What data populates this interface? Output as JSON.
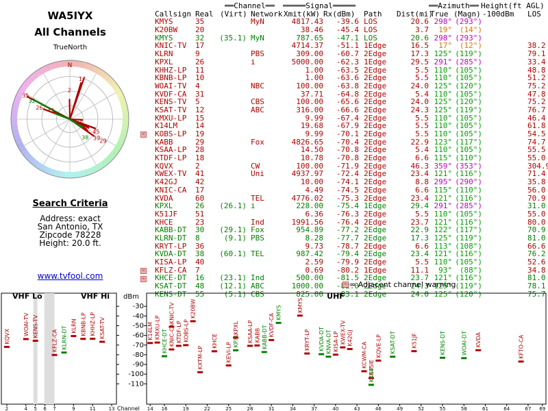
{
  "left": {
    "callsign": "WA5IYX",
    "subtitle": "All Channels",
    "true_north_label": "TrueNorth",
    "north_letter": "N",
    "criteria_title": "Search Criteria",
    "criteria": [
      "Address: exact",
      "San Antonio, TX",
      "Zipcode 78228",
      "Height: 20.0 ft."
    ],
    "website": "www.tvfool.com"
  },
  "polar_labels": [
    {
      "text": "17",
      "color": "#b00000",
      "az": 17,
      "r": 0.8
    },
    {
      "text": "2",
      "color": "#b00000",
      "az": 359,
      "r": 0.55
    },
    {
      "text": "35",
      "color": "#b00000",
      "az": 298,
      "r": 0.95
    },
    {
      "text": "32",
      "color": "#008000",
      "az": 296,
      "r": 0.8
    },
    {
      "text": "26",
      "color": "#b00000",
      "az": 291,
      "r": 0.62
    },
    {
      "text": "42",
      "color": "#b00000",
      "az": 295,
      "r": 0.4
    },
    {
      "text": "45",
      "color": "#b00000",
      "az": 110,
      "r": 0.2
    },
    {
      "text": "45",
      "color": "#b00000",
      "az": 115,
      "r": 0.55
    },
    {
      "text": "39",
      "color": "#b00000",
      "az": 125,
      "r": 0.62
    },
    {
      "text": "38",
      "color": "#008000",
      "az": 140,
      "r": 0.45
    },
    {
      "text": "29",
      "color": "#b00000",
      "az": 123,
      "r": 0.75
    }
  ],
  "header": {
    "g1": "Channel",
    "g2": "Signal",
    "g3": "Azimuth",
    "g4": "Height(ft AGL)",
    "cols": [
      "Callsign",
      "Real",
      "(Virt)",
      "Network",
      "Xmit(kW)",
      "Rx(dBm)",
      "Path",
      "Dist(mi)",
      "True",
      "(Magn)",
      "-100dBm",
      "LOS"
    ]
  },
  "rows": [
    {
      "cs": "KMYS",
      "real": "35",
      "virt": "",
      "net": "MyN",
      "xmit": "4817.43",
      "rx": "-39.6",
      "path": "LOS",
      "dist": "20.6",
      "true": "298°",
      "magn": "(293°)",
      "h100": "",
      "los": "",
      "c": "r",
      "az": "m",
      "w": false
    },
    {
      "cs": "K20BW",
      "real": "20",
      "virt": "",
      "net": "",
      "xmit": "38.46",
      "rx": "-45.4",
      "path": "LOS",
      "dist": "3.7",
      "true": "19°",
      "magn": "(14°)",
      "h100": "",
      "los": "",
      "c": "r",
      "az": "o",
      "w": false
    },
    {
      "cs": "KMYS",
      "real": "32",
      "virt": "(35.1)",
      "net": "MyN",
      "xmit": "787.65",
      "rx": "-47.1",
      "path": "LOS",
      "dist": "20.6",
      "true": "298°",
      "magn": "(293°)",
      "h100": "",
      "los": "",
      "c": "g",
      "az": "m",
      "w": false
    },
    {
      "cs": "KNIC-TV",
      "real": "17",
      "virt": "",
      "net": "",
      "xmit": "4714.37",
      "rx": "-51.1",
      "path": "1Edge",
      "dist": "16.5",
      "true": "17°",
      "magn": "(12°)",
      "h100": "",
      "los": "38.2",
      "c": "r",
      "az": "o",
      "w": false
    },
    {
      "cs": "KLRN",
      "real": "9",
      "virt": "",
      "net": "PBS",
      "xmit": "309.00",
      "rx": "-60.7",
      "path": "2Edge",
      "dist": "17.3",
      "true": "125°",
      "magn": "(119°)",
      "h100": "",
      "los": "79.1",
      "c": "r",
      "az": "g",
      "w": false
    },
    {
      "cs": "KPXL",
      "real": "26",
      "virt": "",
      "net": "i",
      "xmit": "5000.00",
      "rx": "-62.3",
      "path": "1Edge",
      "dist": "29.5",
      "true": "291°",
      "magn": "(285°)",
      "h100": "",
      "los": "33.4",
      "c": "r",
      "az": "m",
      "w": false
    },
    {
      "cs": "KHHZ-LP",
      "real": "11",
      "virt": "",
      "net": "",
      "xmit": "1.00",
      "rx": "-63.5",
      "path": "2Edge",
      "dist": "5.5",
      "true": "110°",
      "magn": "(105°)",
      "h100": "",
      "los": "48.8",
      "c": "r",
      "az": "g",
      "w": false
    },
    {
      "cs": "KBNB-LP",
      "real": "10",
      "virt": "",
      "net": "",
      "xmit": "1.00",
      "rx": "-63.6",
      "path": "2Edge",
      "dist": "5.5",
      "true": "110°",
      "magn": "(105°)",
      "h100": "",
      "los": "51.2",
      "c": "r",
      "az": "g",
      "w": false
    },
    {
      "cs": "WOAI-TV",
      "real": "4",
      "virt": "",
      "net": "NBC",
      "xmit": "100.00",
      "rx": "-63.8",
      "path": "2Edge",
      "dist": "24.0",
      "true": "125°",
      "magn": "(120°)",
      "h100": "",
      "los": "75.2",
      "c": "r",
      "az": "g",
      "w": false
    },
    {
      "cs": "KVDF-CA",
      "real": "31",
      "virt": "",
      "net": "",
      "xmit": "37.71",
      "rx": "-64.8",
      "path": "2Edge",
      "dist": "5.4",
      "true": "110°",
      "magn": "(105°)",
      "h100": "",
      "los": "47.8",
      "c": "r",
      "az": "g",
      "w": false
    },
    {
      "cs": "KENS-TV",
      "real": "5",
      "virt": "",
      "net": "CBS",
      "xmit": "100.00",
      "rx": "-65.6",
      "path": "2Edge",
      "dist": "24.0",
      "true": "125°",
      "magn": "(120°)",
      "h100": "",
      "los": "75.2",
      "c": "r",
      "az": "g",
      "w": false
    },
    {
      "cs": "KSAT-TV",
      "real": "12",
      "virt": "",
      "net": "ABC",
      "xmit": "316.00",
      "rx": "-66.6",
      "path": "2Edge",
      "dist": "24.3",
      "true": "125°",
      "magn": "(119°)",
      "h100": "",
      "los": "76.7",
      "c": "r",
      "az": "g",
      "w": false
    },
    {
      "cs": "KMXU-LP",
      "real": "15",
      "virt": "",
      "net": "",
      "xmit": "9.99",
      "rx": "-67.4",
      "path": "2Edge",
      "dist": "5.5",
      "true": "110°",
      "magn": "(105°)",
      "h100": "",
      "los": "46.4",
      "c": "r",
      "az": "g",
      "w": false
    },
    {
      "cs": "K14LM",
      "real": "14",
      "virt": "",
      "net": "",
      "xmit": "19.68",
      "rx": "-67.9",
      "path": "2Edge",
      "dist": "5.5",
      "true": "110°",
      "magn": "(105°)",
      "h100": "",
      "los": "61.8",
      "c": "r",
      "az": "g",
      "w": false
    },
    {
      "cs": "KOBS-LP",
      "real": "19",
      "virt": "",
      "net": "",
      "xmit": "9.99",
      "rx": "-70.1",
      "path": "2Edge",
      "dist": "5.5",
      "true": "110°",
      "magn": "(105°)",
      "h100": "",
      "los": "54.5",
      "c": "r",
      "az": "g",
      "w": true
    },
    {
      "cs": "KABB",
      "real": "29",
      "virt": "",
      "net": "Fox",
      "xmit": "4826.65",
      "rx": "-70.4",
      "path": "2Edge",
      "dist": "22.9",
      "true": "123°",
      "magn": "(117°)",
      "h100": "",
      "los": "74.7",
      "c": "r",
      "az": "g",
      "w": false
    },
    {
      "cs": "KSAA-LP",
      "real": "28",
      "virt": "",
      "net": "",
      "xmit": "14.50",
      "rx": "-70.8",
      "path": "2Edge",
      "dist": "5.4",
      "true": "110°",
      "magn": "(105°)",
      "h100": "",
      "los": "55.5",
      "c": "r",
      "az": "g",
      "w": false
    },
    {
      "cs": "KTDF-LP",
      "real": "18",
      "virt": "",
      "net": "",
      "xmit": "10.78",
      "rx": "-70.8",
      "path": "2Edge",
      "dist": "6.6",
      "true": "115°",
      "magn": "(110°)",
      "h100": "",
      "los": "55.0",
      "c": "r",
      "az": "g",
      "w": false
    },
    {
      "cs": "KQVX",
      "real": "2",
      "virt": "",
      "net": "CW",
      "xmit": "100.00",
      "rx": "-71.9",
      "path": "2Edge",
      "dist": "46.3",
      "true": "359°",
      "magn": "(353°)",
      "h100": "",
      "los": "304.9",
      "c": "r",
      "az": "m",
      "w": false
    },
    {
      "cs": "KWEX-TV",
      "real": "41",
      "virt": "",
      "net": "Uni",
      "xmit": "4937.97",
      "rx": "-72.4",
      "path": "2Edge",
      "dist": "23.4",
      "true": "121°",
      "magn": "(116°)",
      "h100": "",
      "los": "71.4",
      "c": "r",
      "az": "g",
      "w": false
    },
    {
      "cs": "K42GJ",
      "real": "42",
      "virt": "",
      "net": "",
      "xmit": "10.00",
      "rx": "-74.1",
      "path": "2Edge",
      "dist": "8.8",
      "true": "295°",
      "magn": "(290°)",
      "h100": "",
      "los": "35.8",
      "c": "r",
      "az": "m",
      "w": false
    },
    {
      "cs": "KNIC-CA",
      "real": "17",
      "virt": "",
      "net": "",
      "xmit": "4.49",
      "rx": "-74.5",
      "path": "2Edge",
      "dist": "6.6",
      "true": "115°",
      "magn": "(110°)",
      "h100": "",
      "los": "56.0",
      "c": "r",
      "az": "g",
      "w": false
    },
    {
      "cs": "KVDA",
      "real": "60",
      "virt": "",
      "net": "TEL",
      "xmit": "4776.02",
      "rx": "-75.3",
      "path": "2Edge",
      "dist": "23.4",
      "true": "121°",
      "magn": "(116°)",
      "h100": "",
      "los": "70.9",
      "c": "r",
      "az": "g",
      "w": false
    },
    {
      "cs": "KPXL",
      "real": "26",
      "virt": "(26.1)",
      "net": "i",
      "xmit": "228.00",
      "rx": "-75.4",
      "path": "1Edge",
      "dist": "29.4",
      "true": "291°",
      "magn": "(285°)",
      "h100": "",
      "los": "31.0",
      "c": "g",
      "az": "m",
      "w": false
    },
    {
      "cs": "K51JF",
      "real": "51",
      "virt": "",
      "net": "",
      "xmit": "6.36",
      "rx": "-76.3",
      "path": "2Edge",
      "dist": "5.5",
      "true": "110°",
      "magn": "(105°)",
      "h100": "",
      "los": "55.0",
      "c": "r",
      "az": "g",
      "w": false
    },
    {
      "cs": "KHCE",
      "real": "23",
      "virt": "",
      "net": "Ind",
      "xmit": "1991.56",
      "rx": "-76.4",
      "path": "2Edge",
      "dist": "23.7",
      "true": "121°",
      "magn": "(116°)",
      "h100": "",
      "los": "80.0",
      "c": "r",
      "az": "g",
      "w": false
    },
    {
      "cs": "KABB-DT",
      "real": "30",
      "virt": "(29.1)",
      "net": "Fox",
      "xmit": "954.89",
      "rx": "-77.2",
      "path": "2Edge",
      "dist": "22.9",
      "true": "122°",
      "magn": "(117°)",
      "h100": "",
      "los": "70.9",
      "c": "g",
      "az": "g",
      "w": false
    },
    {
      "cs": "KLRN-DT",
      "real": "8",
      "virt": "(9.1)",
      "net": "PBS",
      "xmit": "8.28",
      "rx": "-77.7",
      "path": "2Edge",
      "dist": "17.3",
      "true": "125°",
      "magn": "(119°)",
      "h100": "",
      "los": "81.0",
      "c": "g",
      "az": "g",
      "w": false
    },
    {
      "cs": "KRYT-LP",
      "real": "36",
      "virt": "",
      "net": "",
      "xmit": "9.73",
      "rx": "-78.7",
      "path": "2Edge",
      "dist": "6.6",
      "true": "113°",
      "magn": "(108°)",
      "h100": "",
      "los": "66.6",
      "c": "r",
      "az": "g",
      "w": false
    },
    {
      "cs": "KVDA-DT",
      "real": "38",
      "virt": "(60.1)",
      "net": "TEL",
      "xmit": "987.42",
      "rx": "-79.4",
      "path": "2Edge",
      "dist": "23.4",
      "true": "121°",
      "magn": "(116°)",
      "h100": "",
      "los": "76.2",
      "c": "g",
      "az": "g",
      "w": false
    },
    {
      "cs": "KISA-LP",
      "real": "40",
      "virt": "",
      "net": "",
      "xmit": "2.59",
      "rx": "-79.9",
      "path": "2Edge",
      "dist": "5.5",
      "true": "110°",
      "magn": "(105°)",
      "h100": "",
      "los": "52.6",
      "c": "r",
      "az": "g",
      "w": false
    },
    {
      "cs": "KFLZ-CA",
      "real": "7",
      "virt": "",
      "net": "",
      "xmit": "0.69",
      "rx": "-80.2",
      "path": "1Edge",
      "dist": "11.1",
      "true": "93°",
      "magn": "(88°)",
      "h100": "",
      "los": "34.8",
      "c": "r",
      "az": "g",
      "w": true
    },
    {
      "cs": "KHCE-DT",
      "real": "16",
      "virt": "(23.1)",
      "net": "Ind",
      "xmit": "500.00",
      "rx": "-81.5",
      "path": "2Edge",
      "dist": "23.7",
      "true": "121°",
      "magn": "(116°)",
      "h100": "",
      "los": "81.0",
      "c": "g",
      "az": "g",
      "w": true
    },
    {
      "cs": "KSAT-DT",
      "real": "48",
      "virt": "(12.1)",
      "net": "ABC",
      "xmit": "1000.00",
      "rx": "-82.0",
      "path": "2Edge",
      "dist": "24.3",
      "true": "125°",
      "magn": "(119°)",
      "h100": "",
      "los": "78.1",
      "c": "g",
      "az": "g",
      "w": false
    },
    {
      "cs": "KENS-DT",
      "real": "55",
      "virt": "(5.1)",
      "net": "CBS",
      "xmit": "825.00",
      "rx": "-83.1",
      "path": "2Edge",
      "dist": "24.0",
      "true": "125°",
      "magn": "(120°)",
      "h100": "",
      "los": "75.7",
      "c": "g",
      "az": "g",
      "w": false
    }
  ],
  "legend_warning": "= Adjacent channel warning",
  "spectrum": {
    "vhf_lo": "VHF Lo",
    "vhf_hi": "VHF Hi",
    "uhf": "UHF",
    "dbm_label": "dBm",
    "channel_label": "Channel",
    "db_ticks": [
      -30,
      -40,
      -50,
      -60,
      -70,
      -80,
      -90,
      -100,
      -110
    ],
    "vhf_ticks": [
      2,
      4,
      5,
      6,
      7,
      9,
      11,
      13
    ],
    "uhf_ticks": [
      14,
      16,
      19,
      22,
      25,
      28,
      31,
      34,
      37,
      40,
      43,
      46,
      49,
      52,
      55,
      58,
      61,
      64,
      67,
      69
    ],
    "vhf_stations": [
      {
        "label": "KQVX",
        "ch": 2,
        "rx": -71.9,
        "c": "r"
      },
      {
        "label": "WOAI-TV",
        "ch": 4,
        "rx": -63.8,
        "c": "r"
      },
      {
        "label": "KENS-TV",
        "ch": 5,
        "rx": -65.6,
        "c": "r"
      },
      {
        "label": "KFLZ-CA",
        "ch": 7,
        "rx": -80.2,
        "c": "r"
      },
      {
        "label": "KLRN-DT",
        "ch": 8,
        "rx": -77.7,
        "c": "g"
      },
      {
        "label": "KLRN",
        "ch": 9,
        "rx": -60.7,
        "c": "r"
      },
      {
        "label": "KBNB-LP",
        "ch": 10,
        "rx": -63.6,
        "c": "r"
      },
      {
        "label": "KHHZ-LP",
        "ch": 11,
        "rx": -63.5,
        "c": "r"
      },
      {
        "label": "KSAT-TV",
        "ch": 12,
        "rx": -66.6,
        "c": "r"
      }
    ],
    "uhf_stations": [
      {
        "label": "K14LM",
        "ch": 14,
        "rx": -67.9,
        "c": "r"
      },
      {
        "label": "KMXU-LP",
        "ch": 15,
        "rx": -67.4,
        "c": "r"
      },
      {
        "label": "KHCE-DT",
        "ch": 16,
        "rx": -81.5,
        "c": "g"
      },
      {
        "label": "KNIC-CA",
        "ch": 17,
        "rx": -74.5,
        "c": "r"
      },
      {
        "label": "KNIC-TV",
        "ch": 17,
        "rx": -51.1,
        "c": "r"
      },
      {
        "label": "KTDF-LP",
        "ch": 18,
        "rx": -70.8,
        "c": "r"
      },
      {
        "label": "KOBS-LP",
        "ch": 19,
        "rx": -70.1,
        "c": "r"
      },
      {
        "label": "K20BW",
        "ch": 20,
        "rx": -45.4,
        "c": "r"
      },
      {
        "label": "KXTM-LP",
        "ch": 21,
        "rx": -98.0,
        "c": "r"
      },
      {
        "label": "KHCE",
        "ch": 23,
        "rx": -76.4,
        "c": "r"
      },
      {
        "label": "KEVI-LP",
        "ch": 25,
        "rx": -91.0,
        "c": "r"
      },
      {
        "label": "KPXL",
        "ch": 26,
        "rx": -75.4,
        "c": "g"
      },
      {
        "label": "KPXL",
        "ch": 26,
        "rx": -62.3,
        "c": "r"
      },
      {
        "label": "KSAA-LP",
        "ch": 28,
        "rx": -70.8,
        "c": "r"
      },
      {
        "label": "KABB",
        "ch": 29,
        "rx": -70.4,
        "c": "r"
      },
      {
        "label": "KABB-DT",
        "ch": 30,
        "rx": -77.2,
        "c": "g"
      },
      {
        "label": "KVDF-CA",
        "ch": 31,
        "rx": -64.8,
        "c": "r"
      },
      {
        "label": "KMYS",
        "ch": 32,
        "rx": -47.1,
        "c": "g"
      },
      {
        "label": "KMYS",
        "ch": 35,
        "rx": -39.6,
        "c": "r"
      },
      {
        "label": "KRYT-LP",
        "ch": 36,
        "rx": -78.7,
        "c": "r"
      },
      {
        "label": "KVDA-DT",
        "ch": 38,
        "rx": -79.4,
        "c": "g"
      },
      {
        "label": "KNVA-DT",
        "ch": 39,
        "rx": -82.0,
        "c": "g"
      },
      {
        "label": "KISA-LP",
        "ch": 40,
        "rx": -79.9,
        "c": "r"
      },
      {
        "label": "KWEX-TV",
        "ch": 41,
        "rx": -72.4,
        "c": "r"
      },
      {
        "label": "K42GJ",
        "ch": 42,
        "rx": -74.1,
        "c": "r"
      },
      {
        "label": "KCWM-CA",
        "ch": 44,
        "rx": -97.0,
        "c": "r"
      },
      {
        "label": "K45IE",
        "ch": 45,
        "rx": -104.0,
        "c": "r"
      },
      {
        "label": "K45IF",
        "ch": 45,
        "rx": -111.0,
        "c": "g"
      },
      {
        "label": "KQVE-LP",
        "ch": 46,
        "rx": -86.0,
        "c": "r"
      },
      {
        "label": "KSAT-DT",
        "ch": 48,
        "rx": -82.0,
        "c": "g"
      },
      {
        "label": "K51JF",
        "ch": 51,
        "rx": -76.3,
        "c": "r"
      },
      {
        "label": "KENS-DT",
        "ch": 55,
        "rx": -83.1,
        "c": "g"
      },
      {
        "label": "WOAI-DT",
        "ch": 58,
        "rx": -83.5,
        "c": "g"
      },
      {
        "label": "KVDA",
        "ch": 60,
        "rx": -75.3,
        "c": "r"
      },
      {
        "label": "KFTO-CA",
        "ch": 66,
        "rx": -87.0,
        "c": "r"
      }
    ]
  },
  "colors": {
    "red": "#b00000",
    "green": "#008000",
    "magenta": "#c000c0",
    "orange": "#e07000",
    "azgreen": "#00a000"
  }
}
